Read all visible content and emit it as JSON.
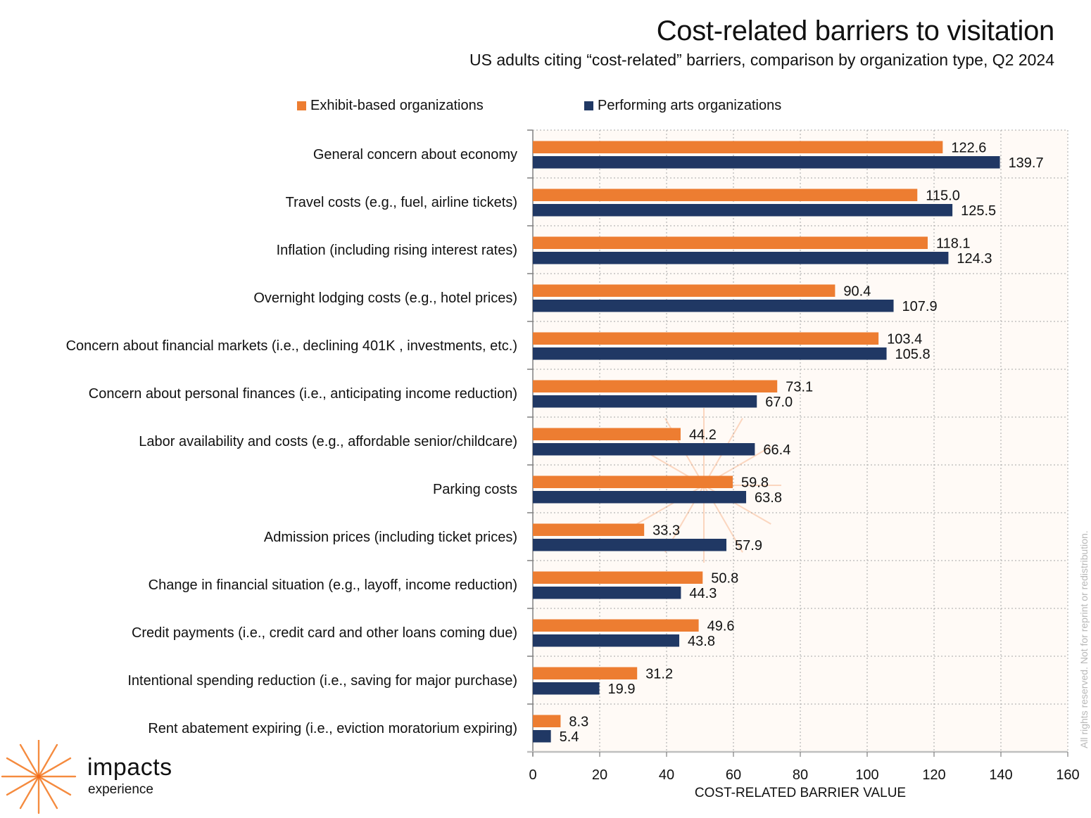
{
  "header": {
    "title": "Cost-related barriers to visitation",
    "subtitle": "US adults citing “cost-related” barriers, comparison by organization type, Q2 2024"
  },
  "legend": {
    "exhibit_label": "Exhibit-based organizations",
    "performing_label": "Performing arts organizations"
  },
  "colors": {
    "exhibit": "#ED7D31",
    "performing": "#203864",
    "plot_background": "#FFFAF6",
    "grid": "#A6A6A6",
    "axis": "#BFBFBF"
  },
  "watermark": {
    "word1": "impacts",
    "word2": "experience"
  },
  "logo": {
    "word1": "impacts",
    "word2": "experience",
    "icon": "starburst-icon"
  },
  "copyright": "All rights reserved. Not for reprint or redistribution.",
  "chart_data": {
    "type": "bar",
    "orientation": "horizontal",
    "title": "Cost-related barriers to visitation",
    "subtitle": "US adults citing “cost-related” barriers, comparison by organization type, Q2 2024",
    "xlabel": "COST-RELATED BARRIER VALUE",
    "ylabel": "",
    "xlim": [
      0,
      160
    ],
    "xticks": [
      0,
      20,
      40,
      60,
      80,
      100,
      120,
      140,
      160
    ],
    "grid": true,
    "legend_position": "top",
    "categories": [
      "General concern about economy",
      "Travel costs (e.g., fuel, airline tickets)",
      "Inflation (including rising interest rates)",
      "Overnight lodging costs (e.g., hotel prices)",
      "Concern about financial markets (i.e.,  declining 401K , investments, etc.)",
      "Concern about personal finances (i.e., anticipating income reduction)",
      "Labor availability and costs (e.g., affordable senior/childcare)",
      "Parking costs",
      "Admission prices (including ticket prices)",
      "Change in financial situation (e.g., layoff, income reduction)",
      "Credit payments (i.e., credit card and other loans coming due)",
      "Intentional spending reduction (i.e., saving for major purchase)",
      "Rent abatement expiring (i.e., eviction moratorium expiring)"
    ],
    "series": [
      {
        "name": "Exhibit-based organizations",
        "color": "#ED7D31",
        "values": [
          122.6,
          115.0,
          118.1,
          90.4,
          103.4,
          73.1,
          44.2,
          59.8,
          33.3,
          50.8,
          49.6,
          31.2,
          8.3
        ]
      },
      {
        "name": "Performing arts organizations",
        "color": "#203864",
        "values": [
          139.7,
          125.5,
          124.3,
          107.9,
          105.8,
          67.0,
          66.4,
          63.8,
          57.9,
          44.3,
          43.8,
          19.9,
          5.4
        ]
      }
    ]
  }
}
